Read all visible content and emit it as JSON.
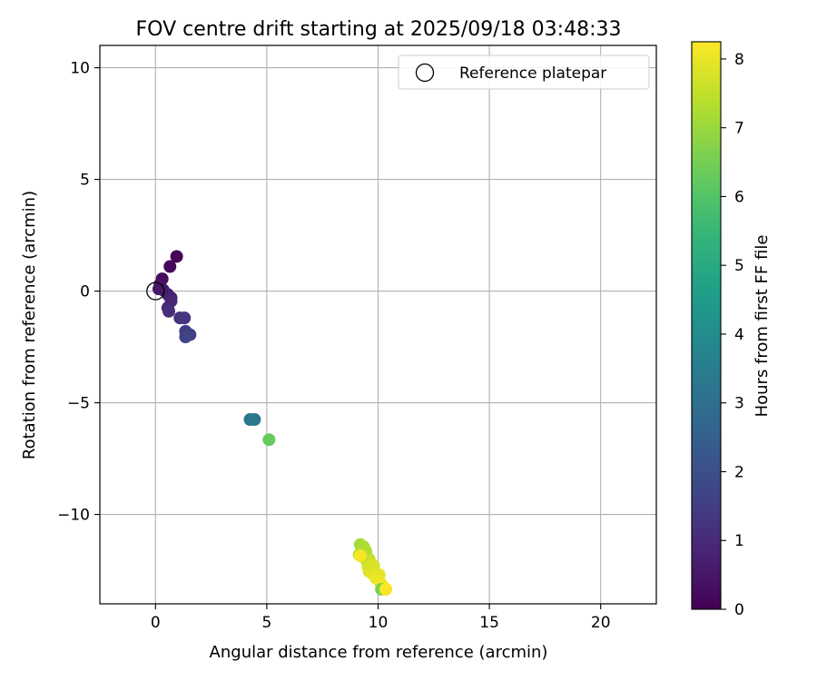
{
  "chart_data": {
    "type": "scatter",
    "title": "FOV centre drift starting at 2025/09/18 03:48:33",
    "xlabel": "Angular distance from reference (arcmin)",
    "ylabel": "Rotation from reference (arcmin)",
    "xlim": [
      -2.5,
      22.5
    ],
    "ylim": [
      -14.0,
      11.0
    ],
    "xticks": [
      0,
      5,
      10,
      15,
      20
    ],
    "yticks": [
      10,
      5,
      0,
      -5,
      -10
    ],
    "xtick_labels": [
      "0",
      "5",
      "10",
      "15",
      "20"
    ],
    "ytick_labels": [
      "10",
      "5",
      "0",
      "−5",
      "−10"
    ],
    "grid": true,
    "legend": {
      "label": "Reference platepar",
      "position": "top-right"
    },
    "reference_point": {
      "x": 0.0,
      "y": 0.0
    },
    "colorbar": {
      "label": "Hours from first FF file",
      "min": 0,
      "max": 8.25,
      "ticks": [
        0,
        1,
        2,
        3,
        4,
        5,
        6,
        7,
        8
      ],
      "tick_labels": [
        "0",
        "1",
        "2",
        "3",
        "4",
        "5",
        "6",
        "7",
        "8"
      ],
      "colormap": "viridis"
    },
    "points": [
      {
        "x": 0.95,
        "y": 1.55,
        "hours": 0.05
      },
      {
        "x": 0.65,
        "y": 1.1,
        "hours": 0.15
      },
      {
        "x": 0.3,
        "y": 0.55,
        "hours": 0.25
      },
      {
        "x": 0.2,
        "y": 0.3,
        "hours": 0.35
      },
      {
        "x": 0.15,
        "y": 0.1,
        "hours": 0.45
      },
      {
        "x": 0.35,
        "y": 0.05,
        "hours": 0.55
      },
      {
        "x": 0.55,
        "y": -0.15,
        "hours": 0.65
      },
      {
        "x": 0.7,
        "y": -0.3,
        "hours": 0.75
      },
      {
        "x": 0.7,
        "y": -0.45,
        "hours": 0.85
      },
      {
        "x": 0.55,
        "y": -0.75,
        "hours": 0.95
      },
      {
        "x": 0.6,
        "y": -0.9,
        "hours": 1.05
      },
      {
        "x": 1.1,
        "y": -1.2,
        "hours": 1.15
      },
      {
        "x": 1.3,
        "y": -1.2,
        "hours": 1.3
      },
      {
        "x": 1.35,
        "y": -1.8,
        "hours": 1.45
      },
      {
        "x": 1.55,
        "y": -1.95,
        "hours": 1.55
      },
      {
        "x": 1.35,
        "y": -2.05,
        "hours": 1.65
      },
      {
        "x": 4.25,
        "y": -5.75,
        "hours": 3.25
      },
      {
        "x": 4.45,
        "y": -5.75,
        "hours": 3.35
      },
      {
        "x": 5.1,
        "y": -6.65,
        "hours": 6.3
      },
      {
        "x": 9.2,
        "y": -11.35,
        "hours": 7.1
      },
      {
        "x": 9.35,
        "y": -11.45,
        "hours": 7.2
      },
      {
        "x": 9.45,
        "y": -11.65,
        "hours": 7.3
      },
      {
        "x": 9.15,
        "y": -11.8,
        "hours": 7.35
      },
      {
        "x": 9.6,
        "y": -12.0,
        "hours": 7.5
      },
      {
        "x": 9.5,
        "y": -12.1,
        "hours": 7.55
      },
      {
        "x": 9.7,
        "y": -12.2,
        "hours": 7.65
      },
      {
        "x": 9.55,
        "y": -12.35,
        "hours": 7.7
      },
      {
        "x": 9.8,
        "y": -12.3,
        "hours": 7.8
      },
      {
        "x": 9.6,
        "y": -12.55,
        "hours": 7.85
      },
      {
        "x": 9.75,
        "y": -12.65,
        "hours": 7.9
      },
      {
        "x": 10.05,
        "y": -12.7,
        "hours": 7.95
      },
      {
        "x": 9.9,
        "y": -12.85,
        "hours": 8.0
      },
      {
        "x": 10.1,
        "y": -13.05,
        "hours": 8.05
      },
      {
        "x": 10.25,
        "y": -13.25,
        "hours": 8.1
      },
      {
        "x": 10.15,
        "y": -13.35,
        "hours": 6.6
      },
      {
        "x": 10.35,
        "y": -13.35,
        "hours": 8.2
      },
      {
        "x": 9.2,
        "y": -11.85,
        "hours": 8.15
      }
    ]
  }
}
